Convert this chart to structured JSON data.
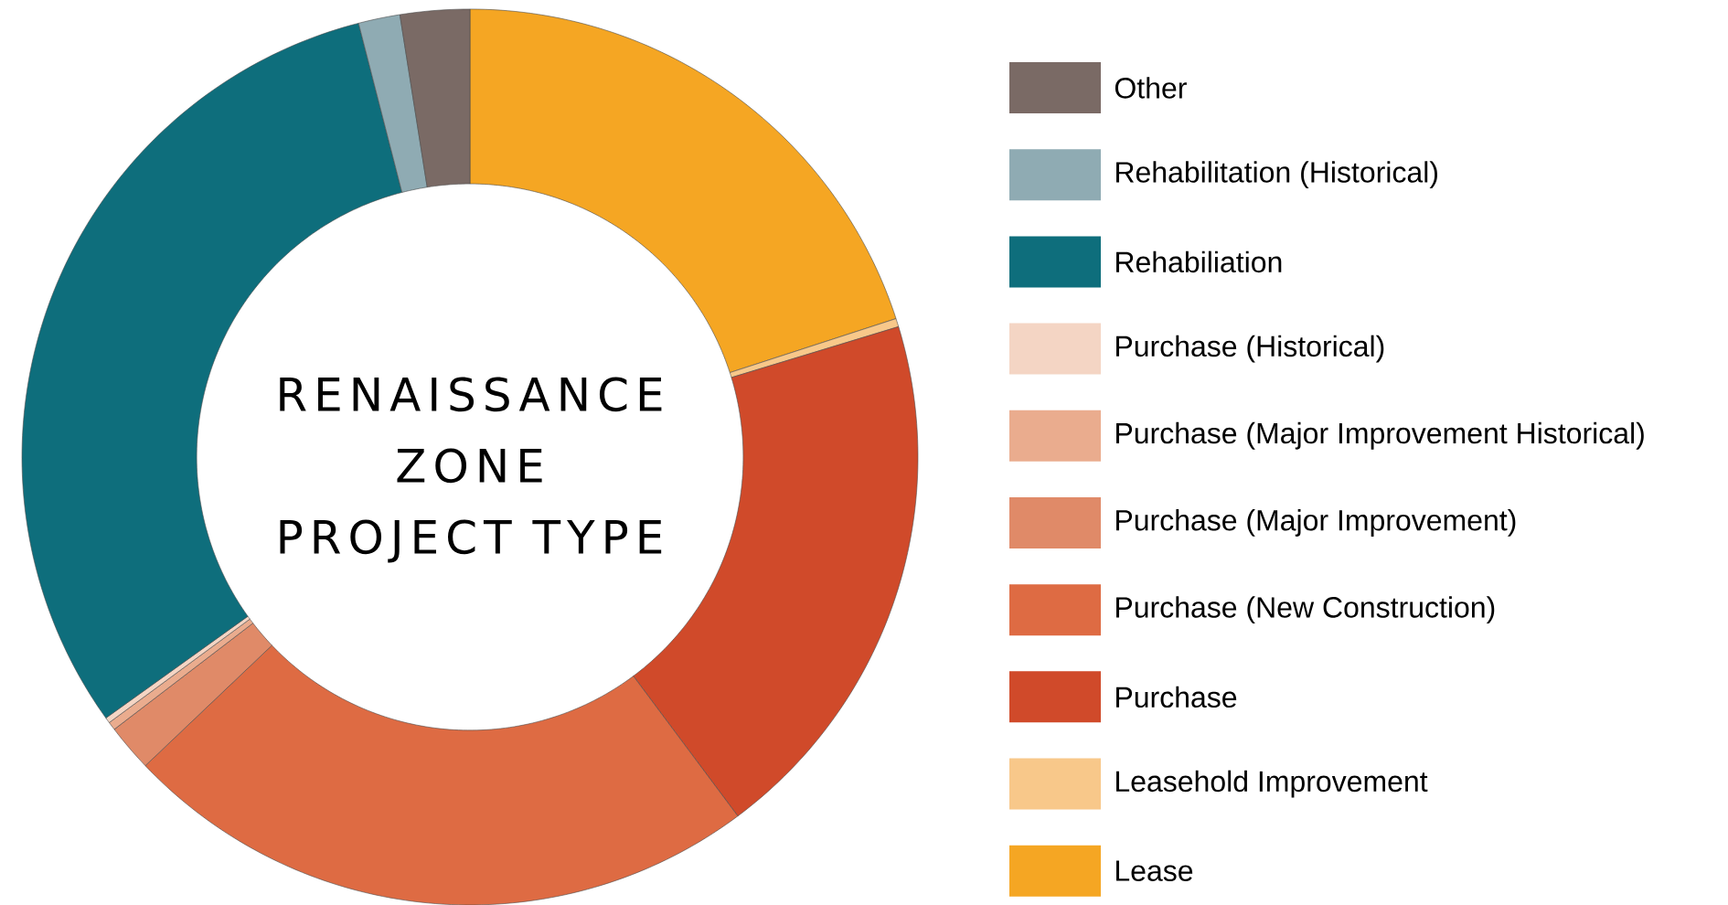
{
  "chart_data": {
    "type": "donut",
    "title": "RENAISSANCE ZONE PROJECT TYPE",
    "legend": "right",
    "categories": [
      "Lease",
      "Leasehold Improvement",
      "Purchase",
      "Purchase (New Construction)",
      "Purchase (Major Improvement)",
      "Purchase (Major Improvement Historical)",
      "Purchase (Historical)",
      "Rehabiliation",
      "Rehabilitation (Historical)",
      "Other"
    ],
    "values": [
      20.0,
      0.3,
      19.5,
      23.1,
      1.7,
      0.3,
      0.2,
      30.9,
      1.5,
      2.5
    ],
    "colors": [
      "#f5a623",
      "#f8c88a",
      "#d04a2a",
      "#de6b43",
      "#e08a68",
      "#eaac8e",
      "#f4d5c4",
      "#0e6e7c",
      "#8fabb3",
      "#7a6a65"
    ]
  }
}
